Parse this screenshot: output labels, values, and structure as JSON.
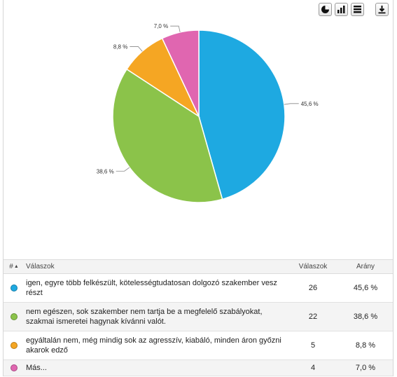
{
  "toolbar": {
    "buttons": [
      {
        "name": "pie-chart-view-button",
        "icon": "pie-chart-icon"
      },
      {
        "name": "bar-chart-view-button",
        "icon": "bar-chart-icon"
      },
      {
        "name": "table-view-button",
        "icon": "table-icon"
      },
      {
        "name": "download-button",
        "icon": "download-icon"
      }
    ]
  },
  "chart_data": {
    "type": "pie",
    "slices": [
      {
        "label": "igen, egyre több felkészült, kötelességtudatosan dolgozó szakember vesz részt",
        "value": 45.6,
        "text": "45,6 %",
        "color": "#1ea9e1"
      },
      {
        "label": "nem egészen, sok szakember nem tartja be a megfelelő szabályokat, szakmai ismeretei hagynak kívánni valót.",
        "value": 38.6,
        "text": "38,6 %",
        "color": "#8bc34a"
      },
      {
        "label": "egyáltalán nem, még mindig sok az agresszív, kiabáló, minden áron győzni akarok edző",
        "value": 8.8,
        "text": "8,8 %",
        "color": "#f5a623"
      },
      {
        "label": "Más...",
        "value": 7.0,
        "text": "7,0 %",
        "color": "#e066b0"
      }
    ]
  },
  "table": {
    "headers": {
      "num": "#",
      "answers": "Válaszok",
      "count": "Válaszok",
      "ratio": "Arány"
    },
    "rows": [
      {
        "text": "igen, egyre több felkészült, kötelességtudatosan dolgozó szakember vesz részt",
        "count": "26",
        "ratio": "45,6 %",
        "color": "#1ea9e1"
      },
      {
        "text": "nem egészen, sok szakember nem tartja be a megfelelő szabályokat, szakmai ismeretei hagynak kívánni valót.",
        "count": "22",
        "ratio": "38,6 %",
        "color": "#8bc34a"
      },
      {
        "text": "egyáltalán nem, még mindig sok az agresszív, kiabáló, minden áron győzni akarok edző",
        "count": "5",
        "ratio": "8,8 %",
        "color": "#f5a623"
      },
      {
        "text": "Más...",
        "count": "4",
        "ratio": "7,0 %",
        "color": "#e066b0"
      }
    ]
  }
}
